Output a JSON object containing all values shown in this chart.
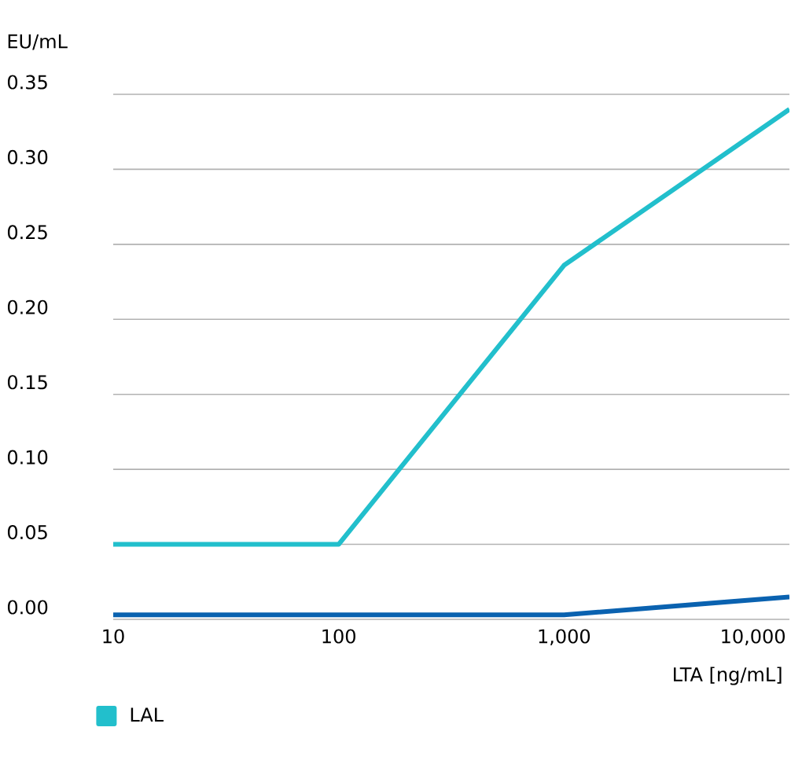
{
  "chart_data": {
    "type": "line",
    "xlabel": "LTA [ng/mL]",
    "ylabel": "EU/mL",
    "log": "x",
    "grid": "y",
    "legend": "bottom left",
    "x": [
      10,
      100,
      1000,
      10000
    ],
    "xlim": [
      10,
      10000
    ],
    "xticks": [
      10,
      100,
      {
        "value": 1000,
        "label": "1,000"
      },
      {
        "value": 10000,
        "label": "10,000"
      }
    ],
    "ylim": [
      0,
      0.35
    ],
    "yticks": [
      {
        "value": 0,
        "label": "0.00"
      },
      {
        "value": 0.05,
        "label": "0.05"
      },
      {
        "value": 0.1,
        "label": "0.10"
      },
      {
        "value": 0.15,
        "label": "0.15"
      },
      {
        "value": 0.2,
        "label": "0.20"
      },
      {
        "value": 0.25,
        "label": "0.25"
      },
      {
        "value": 0.3,
        "label": "0.30"
      },
      {
        "value": 0.35,
        "label": "0.35"
      }
    ],
    "series": [
      {
        "color": "#0a62b0",
        "values": [
          0.003,
          0.003,
          0.003,
          0.015
        ]
      },
      {
        "name": "LAL",
        "color": "#22bfcc",
        "values": [
          0.05,
          0.05,
          0.236,
          0.34
        ]
      }
    ]
  }
}
